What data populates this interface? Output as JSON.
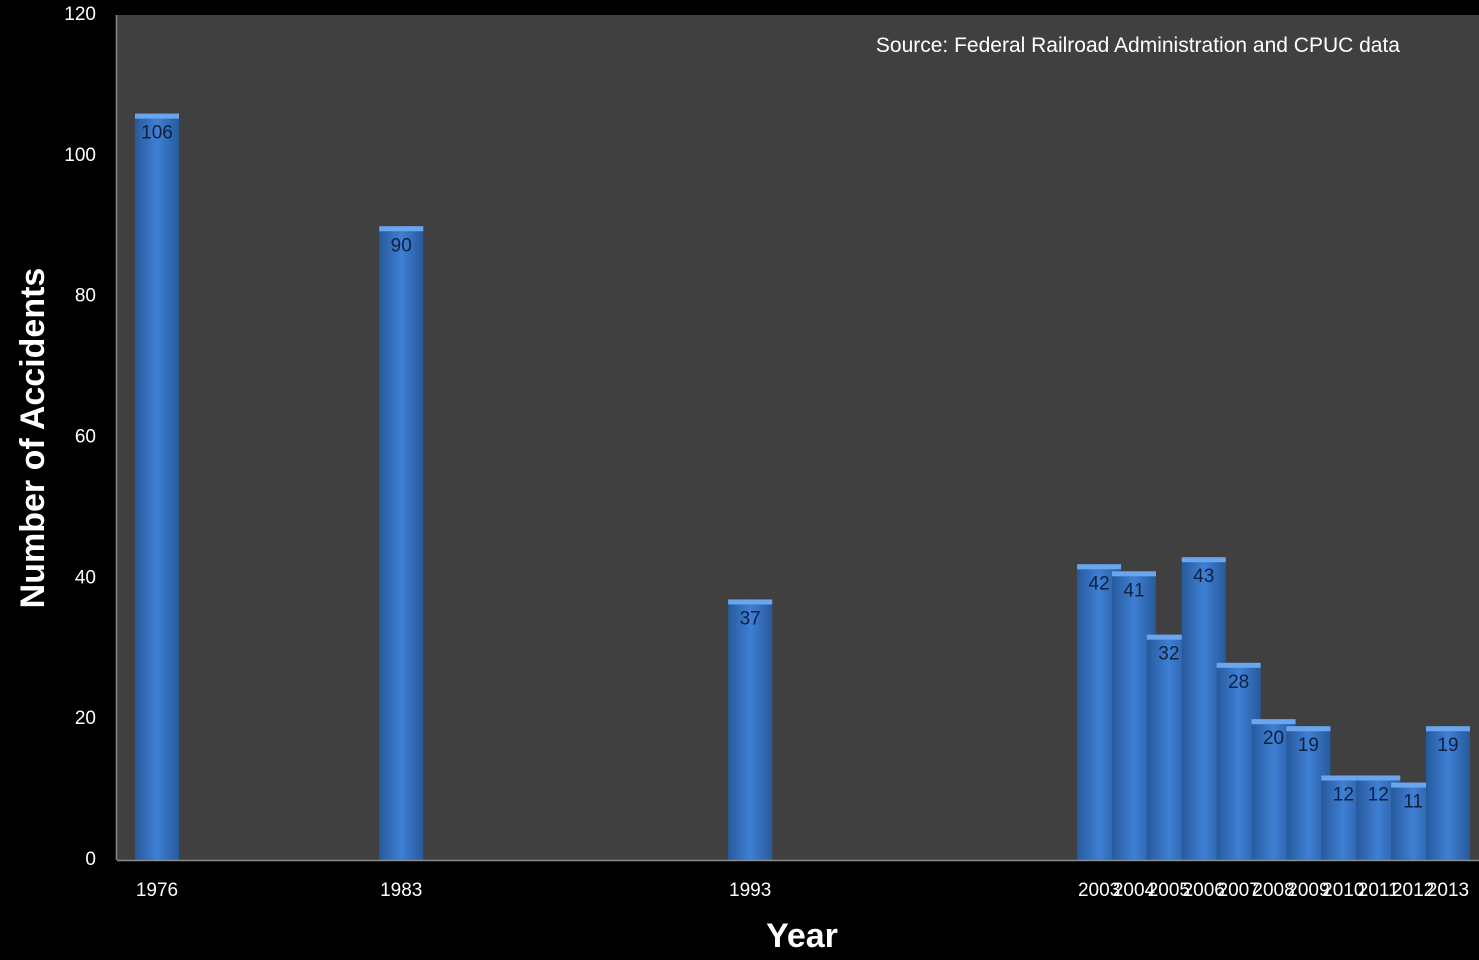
{
  "chart_data": {
    "type": "bar",
    "categories": [
      "1976",
      "1983",
      "1993",
      "2003",
      "2004",
      "2005",
      "2006",
      "2007",
      "2008",
      "2009",
      "2010",
      "2011",
      "2012",
      "2013"
    ],
    "values": [
      106,
      90,
      37,
      42,
      41,
      32,
      43,
      28,
      20,
      19,
      12,
      12,
      11,
      19
    ],
    "xlabel": "Year",
    "ylabel": "Number of Accidents",
    "annotation": "Source: Federal Railroad Administration and CPUC data",
    "ylim": [
      0,
      120
    ],
    "yticks": [
      0,
      20,
      40,
      60,
      80,
      100,
      120
    ],
    "x_axis_scale": "date",
    "grid": false,
    "data_labels": true,
    "legend": "none",
    "colors": {
      "background": "#000000",
      "plot_background": "#404040",
      "bar": "#3f7fd4",
      "bar_highlight": "#6aa6ee",
      "bar_shadow": "#275a9c",
      "data_label": "#10213f",
      "text": "#ffffff",
      "axis_line": "#8c8c8c"
    }
  }
}
